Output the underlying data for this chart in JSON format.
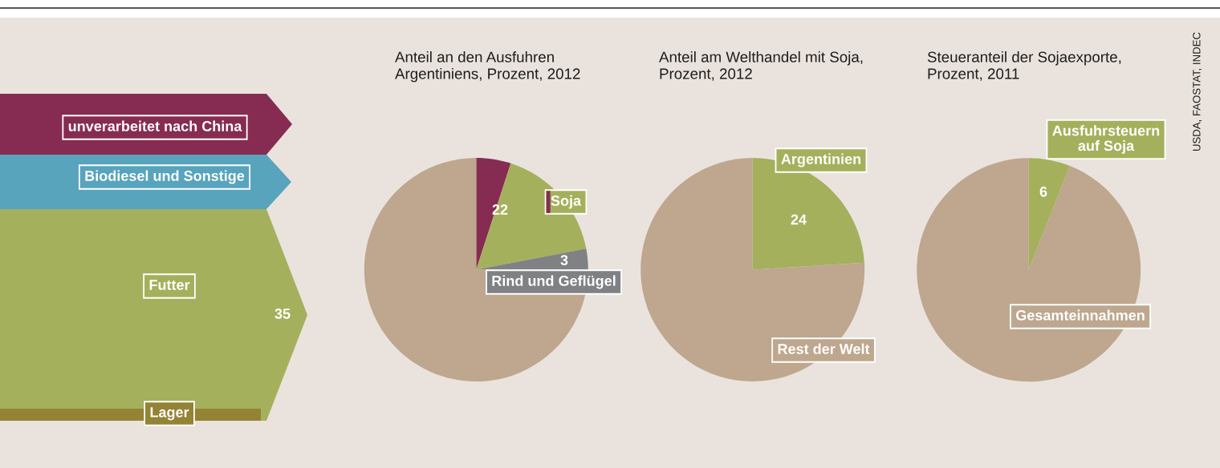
{
  "chart_data": [
    {
      "type": "other",
      "categories": [
        "unverarbeitet nach China",
        "Biodiesel und Sonstige",
        "Futter",
        "Lager"
      ],
      "colors": [
        "#862c52",
        "#57a4bc",
        "#a5b05c",
        "#948235"
      ],
      "annotations": [
        "35"
      ]
    },
    {
      "type": "pie",
      "title": "Anteil an den Ausfuhren\nArgentiniens, Prozent, 2012",
      "categories": [
        null,
        "Soja",
        "Rind und Geflügel",
        null
      ],
      "values": [
        5,
        17,
        3,
        75
      ],
      "colors": [
        "#862c52",
        "#a5b05c",
        "#808184",
        "#bea78e"
      ],
      "value_labels": [
        null,
        null,
        "3",
        null
      ],
      "annotations": [
        "22"
      ]
    },
    {
      "type": "pie",
      "title": "Anteil am Welthandel mit Soja,\nProzent, 2012",
      "categories": [
        "Argentinien",
        "Rest der Welt"
      ],
      "values": [
        24,
        76
      ],
      "colors": [
        "#a5b05c",
        "#bea78e"
      ],
      "value_labels": [
        "24",
        null
      ]
    },
    {
      "type": "pie",
      "title": "Steueranteil der Sojaexporte,\nProzent, 2011",
      "categories": [
        "Ausfuhrsteuern\nauf Soja",
        "Gesamteinnahmen"
      ],
      "values": [
        6,
        94
      ],
      "colors": [
        "#a5b05c",
        "#bea78e"
      ],
      "value_labels": [
        "6",
        null
      ],
      "annotations": [
        "USDA, FAOSTAT, INDEC"
      ]
    }
  ]
}
